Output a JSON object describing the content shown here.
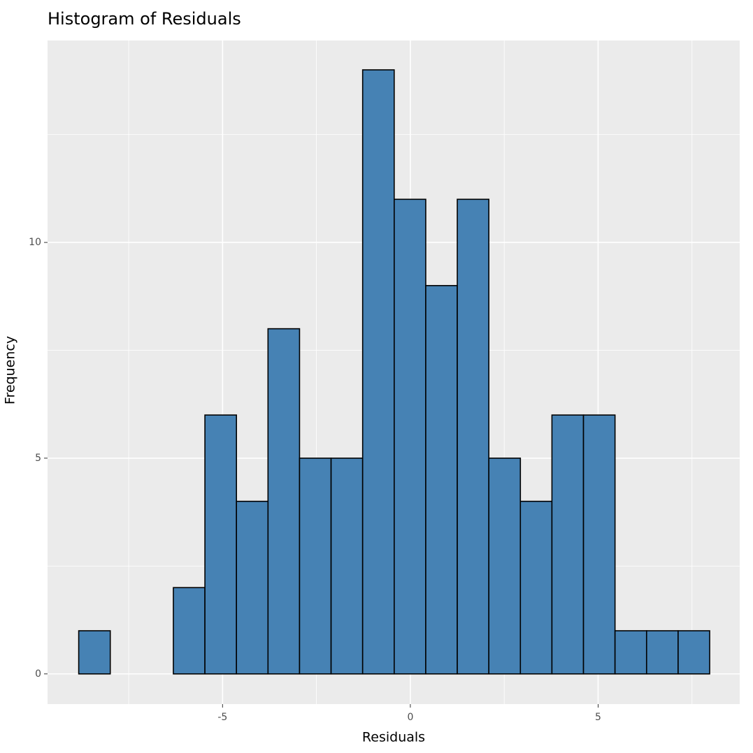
{
  "chart_data": {
    "type": "histogram",
    "title": "Histogram of Residuals",
    "x_label": "Residuals",
    "y_label": "Frequency",
    "bins": [
      -8.83,
      -7.99,
      -7.15,
      -6.31,
      -5.47,
      -4.63,
      -3.79,
      -2.95,
      -2.11,
      -1.27,
      -0.43,
      0.41,
      1.25,
      2.09,
      2.93,
      3.77,
      4.61,
      5.45,
      6.29,
      7.13,
      7.97
    ],
    "counts": [
      1,
      0,
      0,
      2,
      6,
      4,
      8,
      5,
      5,
      14,
      11,
      9,
      11,
      5,
      4,
      6,
      6,
      1,
      1,
      1
    ],
    "color": "#4682b4",
    "edge_color": "#000000",
    "xlim": [
      -9.66,
      8.77
    ],
    "ylim": [
      -0.7,
      14.68
    ],
    "xticks": [
      -5,
      0,
      5
    ],
    "yticks": [
      0,
      5,
      10
    ],
    "x_minor_grid": [
      -7.5,
      -2.5,
      2.5,
      7.5
    ],
    "y_minor_grid": [
      2.5,
      7.5,
      12.5
    ],
    "grid": true
  }
}
